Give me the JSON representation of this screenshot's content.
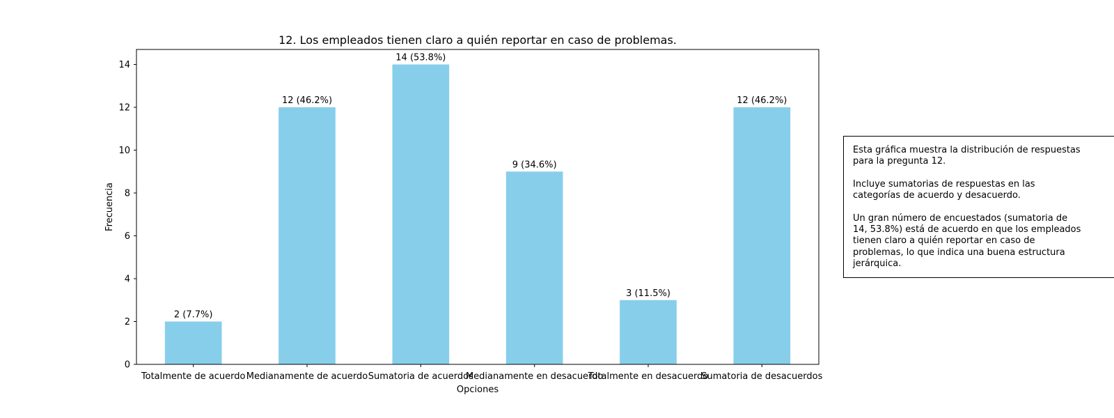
{
  "chart_data": {
    "type": "bar",
    "title": "12. Los empleados tienen claro a quién reportar en caso de problemas.",
    "xlabel": "Opciones",
    "ylabel": "Frecuencia",
    "categories": [
      "Totalmente de acuerdo",
      "Medianamente de acuerdo",
      "Sumatoria de acuerdos",
      "Medianamente en desacuerdo",
      "Totalmente en desacuerdo",
      "Sumatoria de desacuerdos"
    ],
    "values": [
      2,
      12,
      14,
      9,
      3,
      12
    ],
    "data_labels": [
      "2 (7.7%)",
      "12 (46.2%)",
      "14 (53.8%)",
      "9 (34.6%)",
      "3 (11.5%)",
      "12 (46.2%)"
    ],
    "yticks": [
      0,
      2,
      4,
      6,
      8,
      10,
      12,
      14
    ],
    "ylim": [
      0,
      14.7
    ],
    "grid": false,
    "legend": false,
    "bar_color": "#87ceeb"
  },
  "annotation": {
    "text": "Esta gráfica muestra la distribución de respuestas\npara la pregunta 12.\n\nIncluye sumatorias de respuestas en las\ncategorías de acuerdo y desacuerdo.\n\nUn gran número de encuestados (sumatoria de\n14, 53.8%) está de acuerdo en que los empleados\ntienen claro a quién reportar en caso de\nproblemas, lo que indica una buena estructura\njerárquica."
  }
}
